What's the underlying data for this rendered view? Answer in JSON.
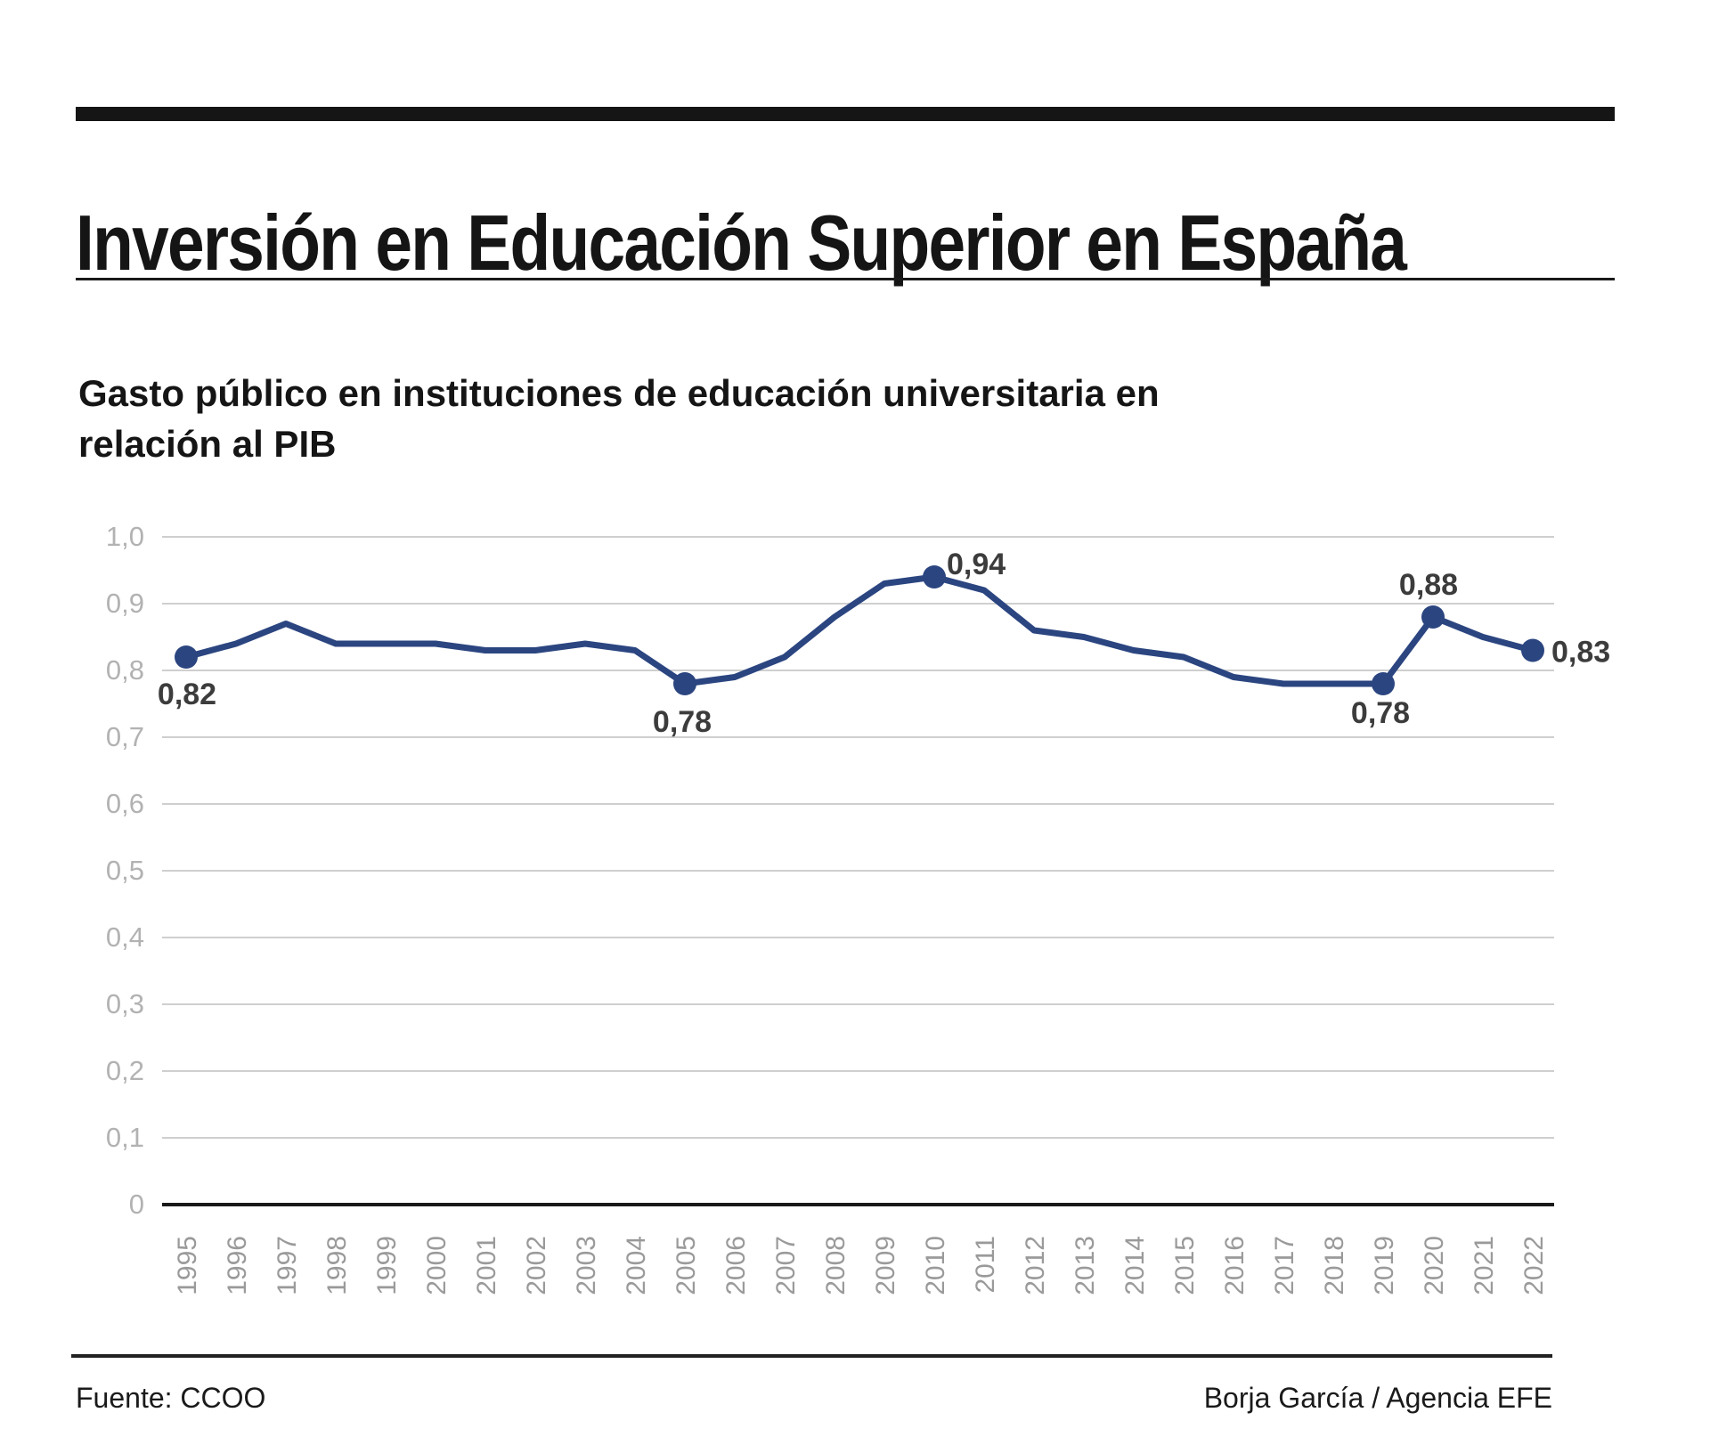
{
  "header": {
    "title": "Inversión en Educación Superior en España"
  },
  "chart_data": {
    "type": "line",
    "title": "Gasto público en instituciones de educación universitaria en relación al PIB",
    "x": [
      1995,
      1996,
      1997,
      1998,
      1999,
      2000,
      2001,
      2002,
      2003,
      2004,
      2005,
      2006,
      2007,
      2008,
      2009,
      2010,
      2011,
      2012,
      2013,
      2014,
      2015,
      2016,
      2017,
      2018,
      2019,
      2020,
      2021,
      2022
    ],
    "values": [
      0.82,
      0.84,
      0.87,
      0.84,
      0.84,
      0.84,
      0.83,
      0.83,
      0.84,
      0.83,
      0.78,
      0.79,
      0.82,
      0.88,
      0.93,
      0.94,
      0.92,
      0.86,
      0.85,
      0.83,
      0.82,
      0.79,
      0.78,
      0.78,
      0.78,
      0.88,
      0.85,
      0.83
    ],
    "ylim": [
      0,
      1.0
    ],
    "ytick_labels": [
      "0",
      "0,1",
      "0,2",
      "0,3",
      "0,4",
      "0,5",
      "0,6",
      "0,7",
      "0,8",
      "0,9",
      "1,0"
    ],
    "grid": true,
    "legend": "none",
    "line_color": "#2b4580",
    "point_color": "#2b4580",
    "grid_color": "#cfcfcf",
    "zero_line_color": "#1a1a1a",
    "ytick_color": "#b2b2b2",
    "xtick_color": "#9a9a9a",
    "annotation_color": "#3c3c3c",
    "annotated_points": [
      {
        "year": 1995,
        "value": 0.82,
        "label": "0,82"
      },
      {
        "year": 2005,
        "value": 0.78,
        "label": "0,78"
      },
      {
        "year": 2010,
        "value": 0.94,
        "label": "0,94"
      },
      {
        "year": 2019,
        "value": 0.78,
        "label": "0,78"
      },
      {
        "year": 2020,
        "value": 0.88,
        "label": "0,88"
      },
      {
        "year": 2022,
        "value": 0.83,
        "label": "0,83"
      }
    ]
  },
  "footer": {
    "source": "Fuente: CCOO",
    "credit": "Borja García / Agencia EFE"
  }
}
